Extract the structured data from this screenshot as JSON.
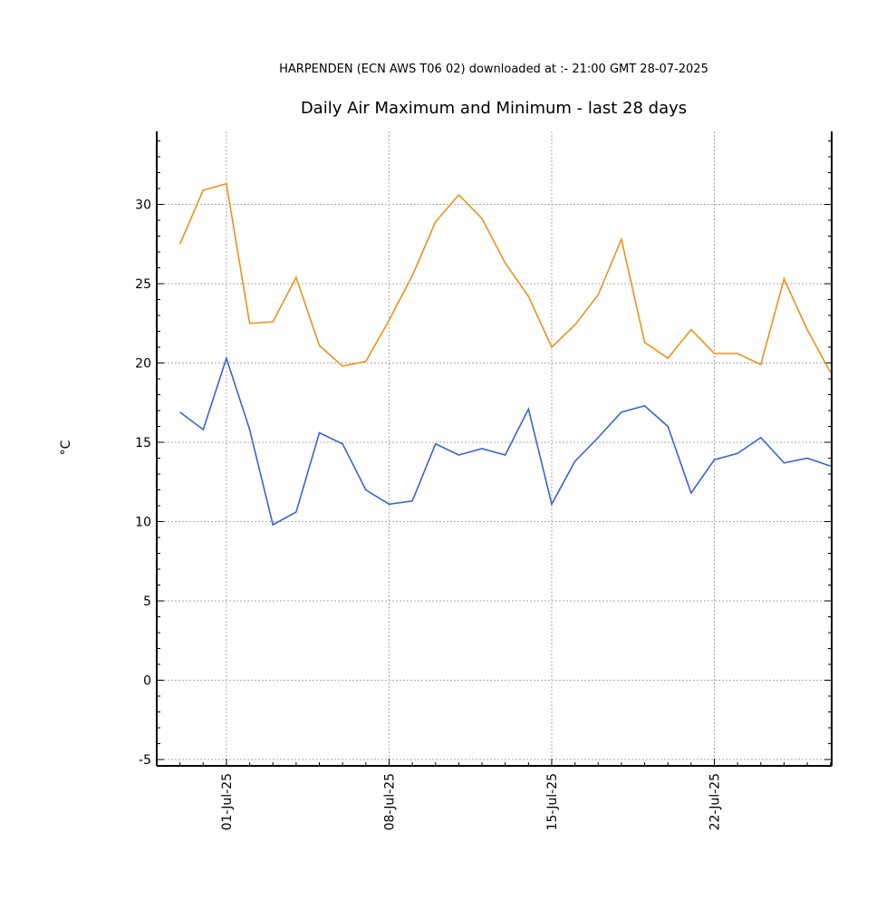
{
  "chart_data": {
    "type": "line",
    "title": "Daily Air Maximum and Minimum - last 28 days",
    "subtitle": "HARPENDEN (ECN AWS T06 02) downloaded at :- 21:00 GMT 28-07-2025",
    "ylabel": "°C",
    "x": [
      "29-Jun-25",
      "30-Jun-25",
      "01-Jul-25",
      "02-Jul-25",
      "03-Jul-25",
      "04-Jul-25",
      "05-Jul-25",
      "06-Jul-25",
      "07-Jul-25",
      "08-Jul-25",
      "09-Jul-25",
      "10-Jul-25",
      "11-Jul-25",
      "12-Jul-25",
      "13-Jul-25",
      "14-Jul-25",
      "15-Jul-25",
      "16-Jul-25",
      "17-Jul-25",
      "18-Jul-25",
      "19-Jul-25",
      "20-Jul-25",
      "21-Jul-25",
      "22-Jul-25",
      "23-Jul-25",
      "24-Jul-25",
      "25-Jul-25",
      "26-Jul-25",
      "27-Jul-25"
    ],
    "series": [
      {
        "color": "#f0901a",
        "values": [
          27.5,
          30.9,
          31.3,
          22.5,
          22.6,
          25.4,
          21.1,
          19.8,
          20.1,
          22.7,
          25.5,
          28.9,
          30.6,
          29.1,
          26.3,
          24.2,
          21.0,
          22.4,
          24.3,
          27.8,
          21.3,
          20.3,
          22.1,
          20.6,
          20.6,
          19.9,
          25.3,
          22.1,
          19.4
        ]
      },
      {
        "color": "#3a62d8",
        "values": [
          16.9,
          15.8,
          20.3,
          15.8,
          9.8,
          10.6,
          15.6,
          14.9,
          12.0,
          11.1,
          11.3,
          14.9,
          14.2,
          14.6,
          14.2,
          17.1,
          11.1,
          13.8,
          15.3,
          16.9,
          17.3,
          16.0,
          11.8,
          13.9,
          14.3,
          15.3,
          13.7,
          14.0,
          13.5
        ]
      }
    ],
    "xticks": [
      "01-Jul-25",
      "08-Jul-25",
      "15-Jul-25",
      "22-Jul-25"
    ],
    "ylim": [
      -5.4,
      34.6
    ],
    "yticks": [
      -5,
      0,
      5,
      10,
      15,
      20,
      25,
      30
    ],
    "grid": true
  }
}
